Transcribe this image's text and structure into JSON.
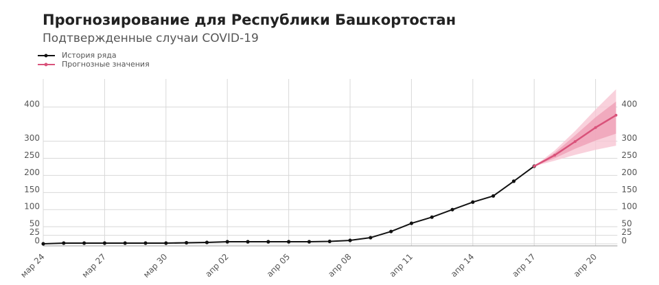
{
  "chart_data": {
    "type": "line",
    "title": "Прогнозирование для Республики Башкортостан",
    "subtitle": "Подтвержденные случаи COVID-19",
    "categories": [
      "мар 24",
      null,
      null,
      "мар 27",
      null,
      null,
      "мар 30",
      null,
      null,
      "апр 02",
      null,
      null,
      "апр 05",
      null,
      null,
      "апр 08",
      null,
      null,
      "апр 11",
      null,
      null,
      "апр 14",
      null,
      null,
      "апр 17",
      null,
      null,
      "апр 20",
      null
    ],
    "series": [
      {
        "name": "История ряда",
        "color": "#111111",
        "values": [
          0,
          2,
          2,
          2,
          2,
          2,
          2,
          3,
          4,
          6,
          6,
          6,
          6,
          6,
          7,
          10,
          18,
          36,
          60,
          78,
          100,
          122,
          140,
          183,
          227,
          null,
          null,
          null,
          null
        ]
      },
      {
        "name": "Прогнозные значения",
        "color": "#d9527a",
        "values": [
          null,
          null,
          null,
          null,
          null,
          null,
          null,
          null,
          null,
          null,
          null,
          null,
          null,
          null,
          null,
          null,
          null,
          null,
          null,
          null,
          null,
          null,
          null,
          null,
          227,
          259,
          299,
          340,
          376
        ]
      }
    ],
    "bands": [
      {
        "color": "#f7c5d3",
        "lower": [
          null,
          null,
          null,
          null,
          null,
          null,
          null,
          null,
          null,
          null,
          null,
          null,
          null,
          null,
          null,
          null,
          null,
          null,
          null,
          null,
          null,
          null,
          null,
          null,
          227,
          243,
          260,
          275,
          287
        ],
        "upper": [
          null,
          null,
          null,
          null,
          null,
          null,
          null,
          null,
          null,
          null,
          null,
          null,
          null,
          null,
          null,
          null,
          null,
          null,
          null,
          null,
          null,
          null,
          null,
          null,
          227,
          273,
          330,
          393,
          452
        ]
      },
      {
        "color": "#efa0b7",
        "lower": [
          null,
          null,
          null,
          null,
          null,
          null,
          null,
          null,
          null,
          null,
          null,
          null,
          null,
          null,
          null,
          null,
          null,
          null,
          null,
          null,
          null,
          null,
          null,
          null,
          227,
          250,
          278,
          302,
          322
        ],
        "upper": [
          null,
          null,
          null,
          null,
          null,
          null,
          null,
          null,
          null,
          null,
          null,
          null,
          null,
          null,
          null,
          null,
          null,
          null,
          null,
          null,
          null,
          null,
          null,
          null,
          227,
          266,
          317,
          370,
          416
        ]
      }
    ],
    "ylim": [
      -6,
      482
    ],
    "yticks": [
      0,
      25,
      50,
      100,
      150,
      200,
      250,
      300,
      400
    ],
    "grid": true
  }
}
